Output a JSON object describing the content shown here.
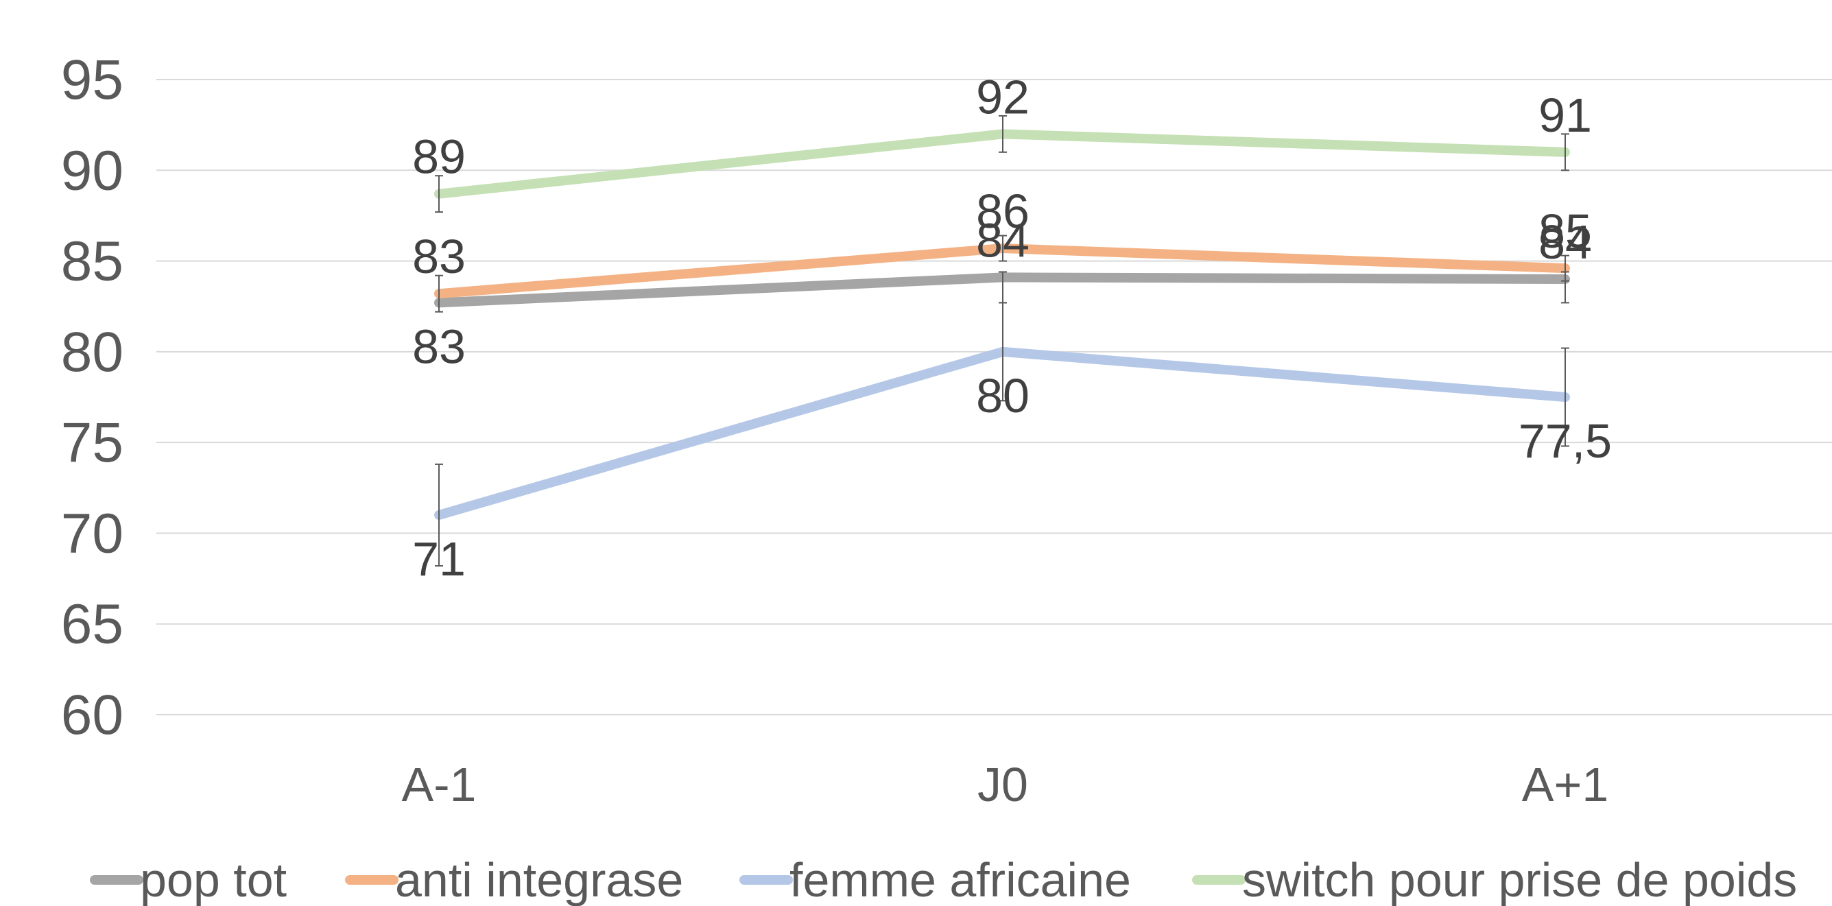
{
  "chart_data": {
    "type": "line",
    "title": "",
    "xlabel": "",
    "ylabel": "",
    "categories": [
      "A-1",
      "J0",
      "A+1"
    ],
    "ylim": [
      60,
      95
    ],
    "yticks": [
      60,
      65,
      70,
      75,
      80,
      85,
      90,
      95
    ],
    "grid": true,
    "legend_position": "bottom",
    "series": [
      {
        "name": "pop tot",
        "color": "#a5a5a5",
        "values": [
          82.7,
          84.1,
          84.0
        ],
        "labels": [
          "83",
          "84",
          "84"
        ],
        "label_position": [
          "below",
          "above",
          "above"
        ],
        "error": [
          null,
          [
            82.7,
            84.4
          ],
          [
            82.7,
            84.4
          ]
        ]
      },
      {
        "name": "anti integrase",
        "color": "#f4b183",
        "values": [
          83.2,
          85.7,
          84.6
        ],
        "labels": [
          "83",
          "86",
          "85"
        ],
        "label_position": [
          "above",
          "above",
          "above"
        ],
        "error": [
          [
            82.2,
            84.2
          ],
          [
            85.0,
            86.4
          ],
          [
            83.9,
            85.3
          ]
        ]
      },
      {
        "name": "femme africaine",
        "color": "#b4c7e7",
        "values": [
          71,
          80,
          77.5
        ],
        "labels": [
          "71",
          "80",
          "77,5"
        ],
        "label_position": [
          "below",
          "below",
          "below"
        ],
        "error": [
          [
            68.2,
            73.8
          ],
          [
            77.3,
            82.7
          ],
          [
            74.8,
            80.2
          ]
        ]
      },
      {
        "name": "switch pour prise de poids",
        "color": "#c5e0b4",
        "values": [
          88.7,
          92,
          91
        ],
        "labels": [
          "89",
          "92",
          "91"
        ],
        "label_position": [
          "above",
          "above",
          "above"
        ],
        "error": [
          [
            87.7,
            89.7
          ],
          [
            91.0,
            93.0
          ],
          [
            90.0,
            92.0
          ]
        ]
      }
    ]
  }
}
